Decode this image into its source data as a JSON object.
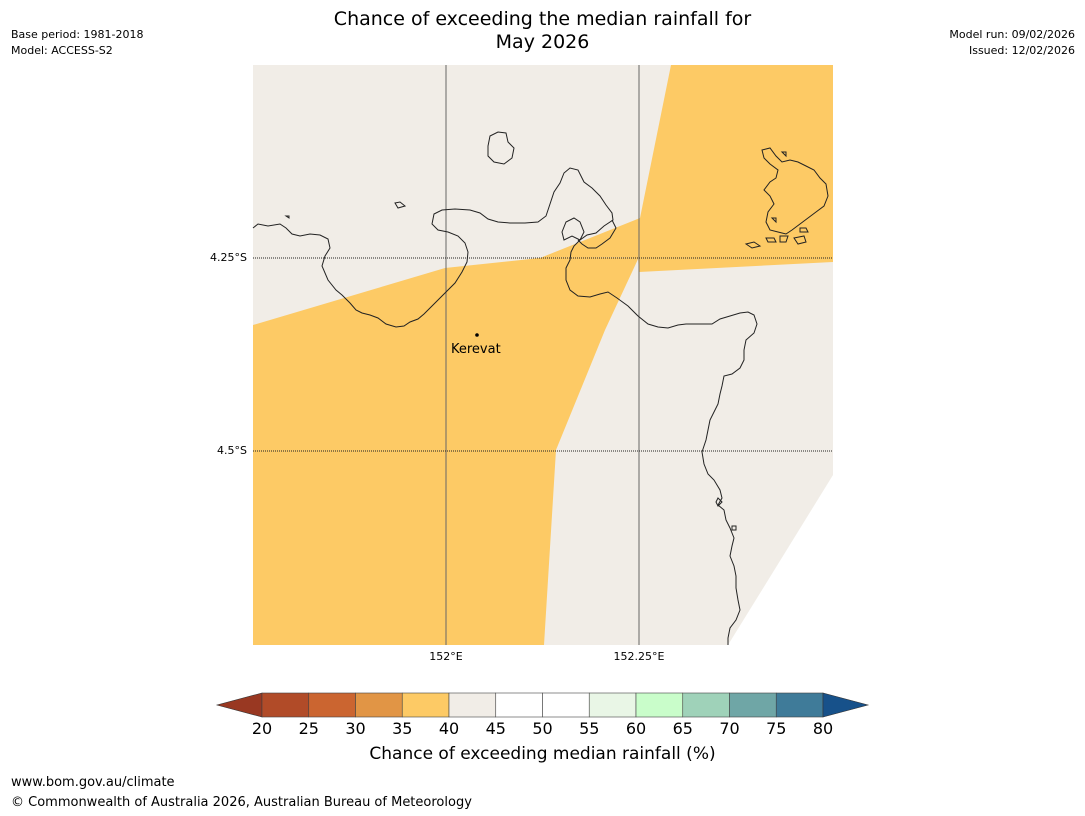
{
  "title_line1": "Chance of exceeding the median rainfall for",
  "title_line2": "May 2026",
  "meta": {
    "base_period": "Base period: 1981-2018",
    "model": "Model: ACCESS-S2",
    "model_run": "Model run: 09/02/2026",
    "issued": "Issued: 12/02/2026"
  },
  "map": {
    "latitudes": [
      "4.25°S",
      "4.5°S"
    ],
    "longitudes": [
      "152°E",
      "152.25°E"
    ],
    "place": "Kerevat",
    "colors": {
      "band_35_40": "#fdca65",
      "band_40_45": "#f1ede7",
      "coast": "#222222",
      "grid": "#555555"
    }
  },
  "colorbar": {
    "ticks": [
      "20",
      "25",
      "30",
      "35",
      "40",
      "45",
      "50",
      "55",
      "60",
      "65",
      "70",
      "75",
      "80"
    ],
    "under_color": "#993822",
    "over_color": "#17518a",
    "colors": [
      "#b14b28",
      "#cb6530",
      "#e19545",
      "#fdca65",
      "#f1ede7",
      "#ffffff",
      "#ffffff",
      "#e9f6e6",
      "#c9fdca",
      "#9fd2b9",
      "#6fa6a6",
      "#3f7b99"
    ],
    "label": "Chance of exceeding median rainfall (%)"
  },
  "footer": {
    "url": "www.bom.gov.au/climate",
    "copyright": "© Commonwealth of Australia 2026, Australian Bureau of Meteorology"
  }
}
